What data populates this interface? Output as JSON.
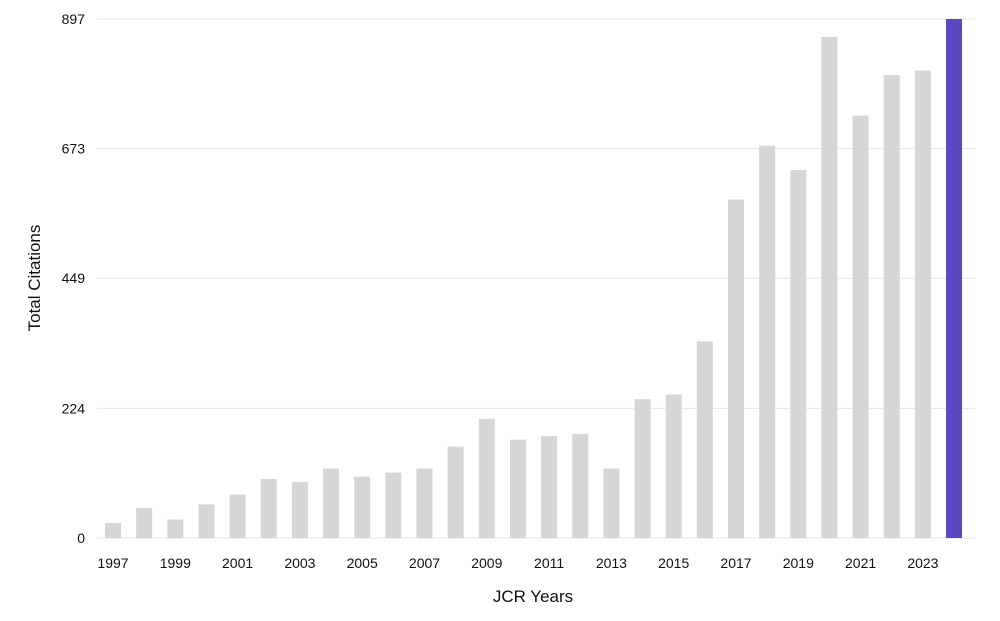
{
  "chart_data": {
    "type": "bar",
    "title": "",
    "xlabel": "JCR Years",
    "ylabel": "Total Citations",
    "categories": [
      "1997",
      "1998",
      "1999",
      "2000",
      "2001",
      "2002",
      "2003",
      "2004",
      "2005",
      "2006",
      "2007",
      "2008",
      "2009",
      "2010",
      "2011",
      "2012",
      "2013",
      "2014",
      "2015",
      "2016",
      "2017",
      "2018",
      "2019",
      "2020",
      "2021",
      "2022",
      "2023",
      "2024"
    ],
    "x_tick_labels": [
      "1997",
      "1999",
      "2001",
      "2003",
      "2005",
      "2007",
      "2009",
      "2011",
      "2013",
      "2015",
      "2017",
      "2019",
      "2021",
      "2023"
    ],
    "series": [
      {
        "values": [
          26,
          52,
          32,
          58,
          75,
          102,
          97,
          120,
          106,
          113,
          120,
          158,
          206,
          170,
          176,
          180,
          120,
          240,
          248,
          340,
          585,
          678,
          636,
          866,
          730,
          800,
          808,
          897
        ]
      }
    ],
    "highlight_category": "2024",
    "ylim": [
      0,
      897
    ],
    "y_ticks": [
      0,
      224,
      449,
      673,
      897
    ],
    "grid": true,
    "colors": {
      "bar": "#d6d6d6",
      "highlight": "#5a48c0",
      "grid": "#e6e6e6",
      "text": "#111111"
    }
  }
}
